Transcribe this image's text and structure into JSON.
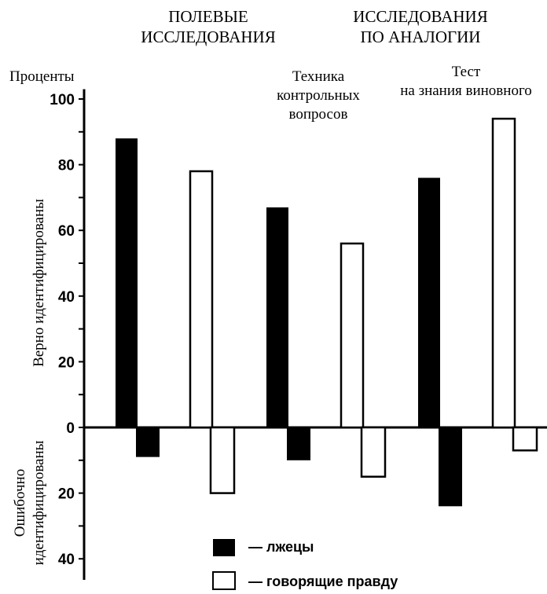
{
  "chart_data": {
    "type": "bar",
    "group_titles": [
      [
        "ПОЛЕВЫЕ",
        "ИССЛЕДОВАНИЯ"
      ],
      [
        "ИССЛЕДОВАНИЯ",
        "ПО АНАЛОГИИ"
      ]
    ],
    "subgroup_titles": [
      [
        "Техника",
        "контрольных",
        "вопросов"
      ],
      [
        "Тест",
        "на знания виновного"
      ]
    ],
    "ylabel_top": "Проценты",
    "ylabel_upper": "Верно идентифицированы",
    "ylabel_lower": [
      "Ошибочно",
      "идентифицированы"
    ],
    "y_ticks": [
      {
        "value": 100,
        "label": "100"
      },
      {
        "value": 80,
        "label": "80"
      },
      {
        "value": 60,
        "label": "60"
      },
      {
        "value": 40,
        "label": "40"
      },
      {
        "value": 20,
        "label": "20"
      },
      {
        "value": 0,
        "label": "0"
      },
      {
        "value": -20,
        "label": "20"
      },
      {
        "value": -40,
        "label": "40"
      }
    ],
    "ylim": [
      -45,
      103
    ],
    "series": [
      {
        "name": "лжецы",
        "color": "#000000",
        "fill": "solid",
        "correct": [
          88,
          67,
          76
        ],
        "incorrect": [
          9,
          10,
          24
        ]
      },
      {
        "name": "говорящие правду",
        "color": "#ffffff",
        "fill": "hollow",
        "correct": [
          78,
          56,
          94
        ],
        "incorrect": [
          20,
          15,
          7
        ]
      }
    ],
    "legend_position": "bottom-center"
  }
}
